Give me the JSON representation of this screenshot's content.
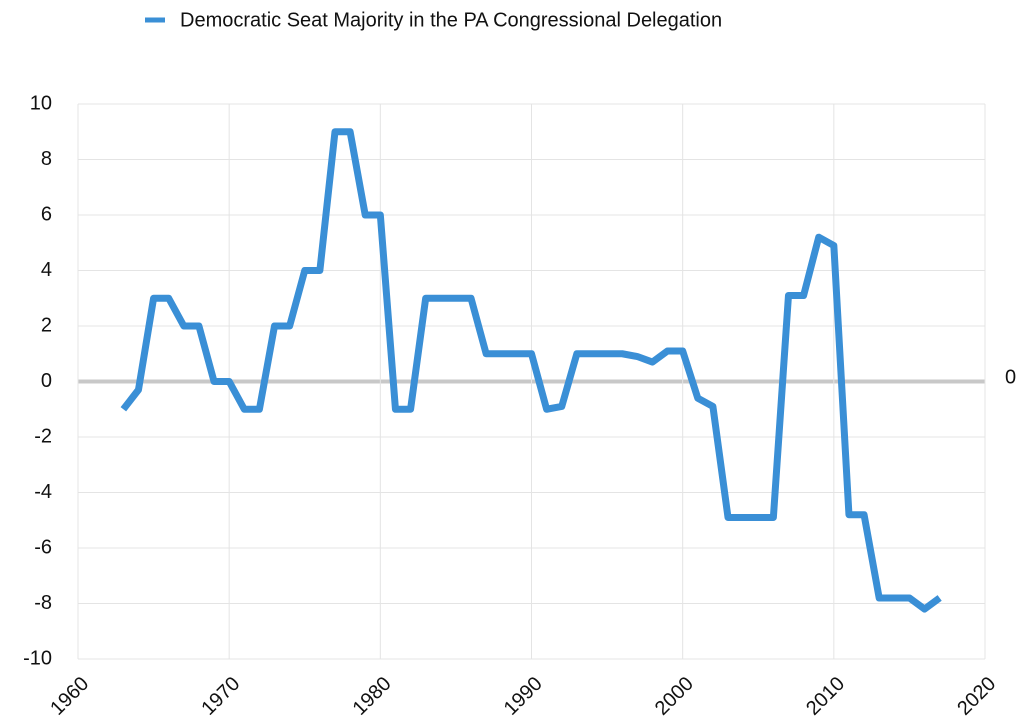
{
  "chart_data": {
    "type": "line",
    "series": [
      {
        "name": "Democratic Seat Majority in the PA Congressional Delegation",
        "color": "#3a8fd6",
        "values": [
          -1,
          -0.3,
          3,
          3,
          2,
          2,
          0,
          0,
          -1,
          -1,
          2,
          2,
          4,
          4,
          9,
          9,
          6,
          6,
          -1,
          -1,
          3,
          3,
          1,
          1,
          -1,
          -0.9,
          1,
          1,
          0.9,
          0.7,
          1.1,
          1.1,
          -0.6,
          -0.9,
          -4.9,
          -4.9,
          3.1,
          3.1,
          5.2,
          4.9,
          -4.8,
          -4.8,
          -7.8,
          -7.8,
          -8.2,
          -7.8
        ]
      }
    ],
    "x": [
      1963,
      1964,
      1965,
      1966,
      1967,
      1968,
      1969,
      1970,
      1971,
      1972,
      1973,
      1974,
      1975,
      1976,
      1977,
      1978,
      1979,
      1980,
      1981,
      1982,
      1983,
      1986,
      1987,
      1990,
      1991,
      1992,
      1993,
      1996,
      1997,
      1998,
      1999,
      2000,
      2001,
      2002,
      2003,
      2006,
      2007,
      2008,
      2009,
      2010,
      2011,
      2012,
      2013,
      2015,
      2016,
      2017
    ],
    "xlim": [
      1960,
      2020
    ],
    "xticks": [
      1960,
      1970,
      1980,
      1990,
      2000,
      2010,
      2020
    ],
    "ylim": [
      -10,
      10
    ],
    "yticks": [
      -10,
      -8,
      -6,
      -4,
      -2,
      0,
      2,
      4,
      6,
      8,
      10
    ],
    "annotation": "0",
    "grid": true
  }
}
